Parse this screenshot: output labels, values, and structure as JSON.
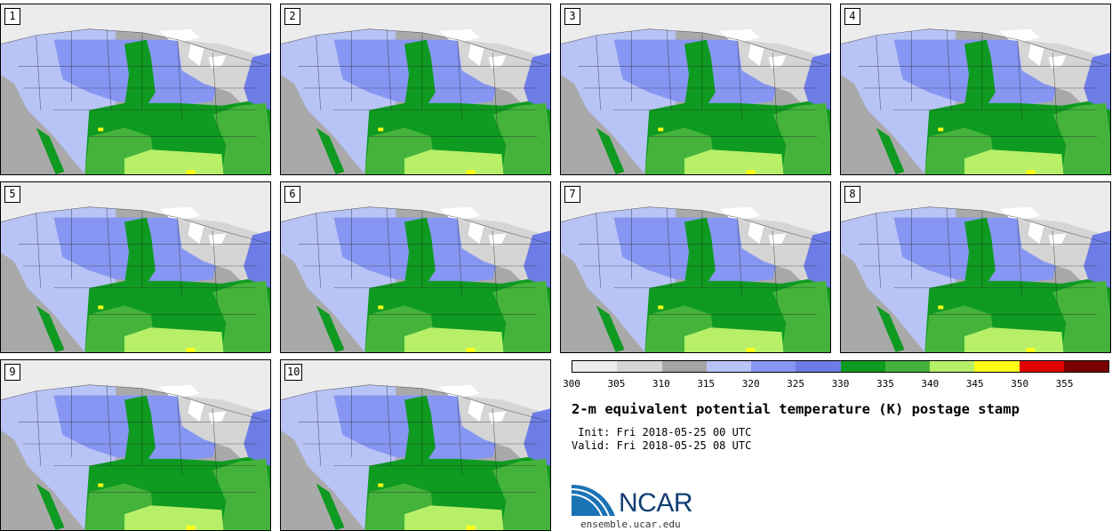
{
  "panels": [
    {
      "label": "1"
    },
    {
      "label": "2"
    },
    {
      "label": "3"
    },
    {
      "label": "4"
    },
    {
      "label": "5"
    },
    {
      "label": "6"
    },
    {
      "label": "7"
    },
    {
      "label": "8"
    },
    {
      "label": "9"
    },
    {
      "label": "10"
    }
  ],
  "colorbar": {
    "colors": [
      "#ececec",
      "#d5d5d5",
      "#a4a4a4",
      "#b8c3f6",
      "#8696f2",
      "#6e7de6",
      "#0f9a21",
      "#45b33b",
      "#b7ef69",
      "#fffe14",
      "#e00000",
      "#7a0000"
    ],
    "ticks": [
      "300",
      "305",
      "310",
      "315",
      "320",
      "325",
      "330",
      "335",
      "340",
      "345",
      "350",
      "355"
    ]
  },
  "title": "2-m equivalent potential temperature (K) postage stamp",
  "init_line": " Init: Fri 2018-05-25 00 UTC",
  "valid_line": "Valid: Fri 2018-05-25 08 UTC",
  "logo": {
    "name": "NCAR",
    "url": "ensemble.ucar.edu"
  }
}
